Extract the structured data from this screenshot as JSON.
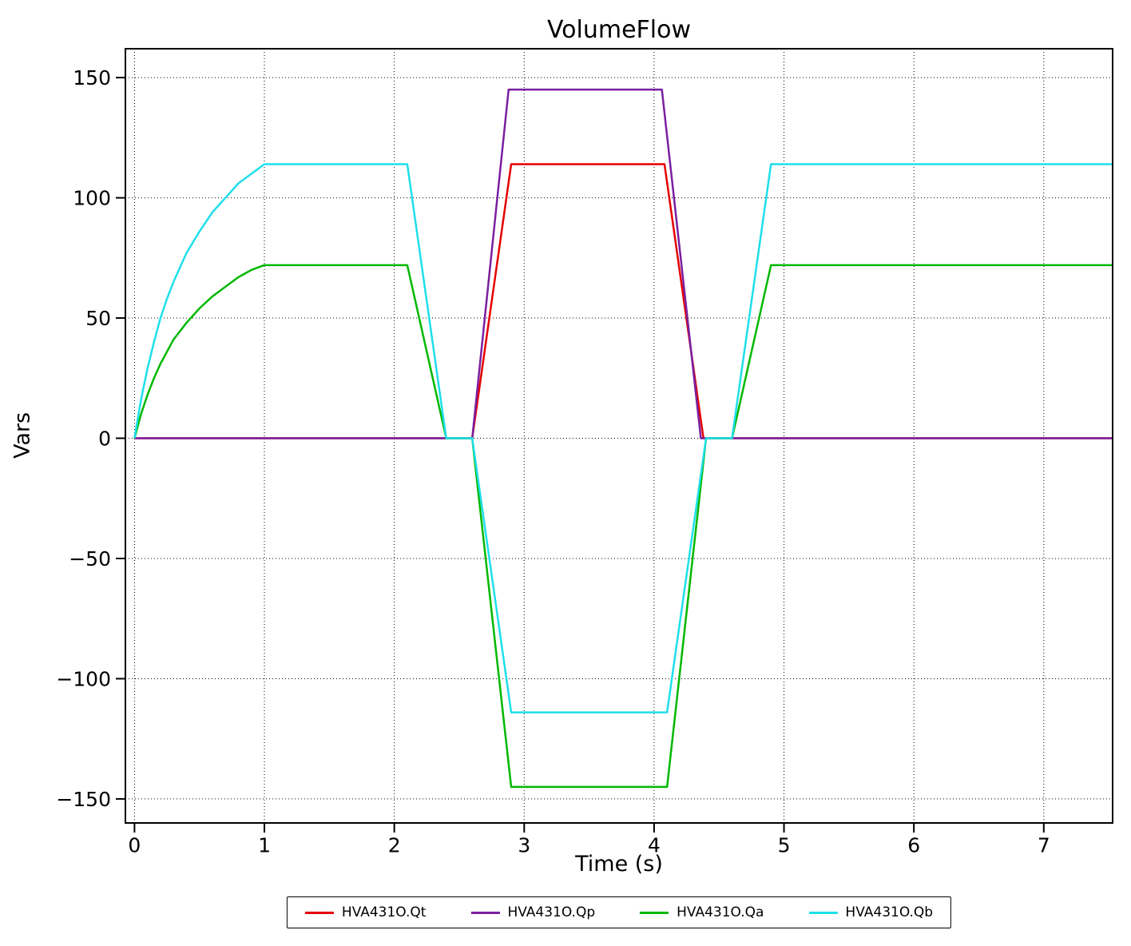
{
  "chart": {
    "title": "VolumeFlow",
    "xlabel": "Time (s)",
    "ylabel": "Vars"
  },
  "chart_data": {
    "type": "line",
    "title": "VolumeFlow",
    "xlabel": "Time (s)",
    "ylabel": "Vars",
    "grid": true,
    "grid_style": "dotted",
    "legend_position": "bottom",
    "xlim": [
      -0.07,
      7.53
    ],
    "ylim": [
      -160,
      162
    ],
    "x_ticks": [
      0,
      1,
      2,
      3,
      4,
      5,
      6,
      7
    ],
    "x_tick_labels": [
      "0",
      "1",
      "2",
      "3",
      "4",
      "5",
      "6",
      "7"
    ],
    "y_ticks": [
      -150,
      -100,
      -50,
      0,
      50,
      100,
      150
    ],
    "y_tick_labels": [
      "−150",
      "−100",
      "−50",
      "0",
      "50",
      "100",
      "150"
    ],
    "series": [
      {
        "name": "HVA431O.Qt",
        "color": "#e60000",
        "points": [
          [
            0,
            0
          ],
          [
            2.6,
            0
          ],
          [
            2.9,
            114
          ],
          [
            4.08,
            114
          ],
          [
            4.38,
            0
          ],
          [
            7.53,
            0
          ]
        ]
      },
      {
        "name": "HVA431O.Qp",
        "color": "#7a1fa0",
        "points": [
          [
            0,
            0
          ],
          [
            2.6,
            0
          ],
          [
            2.88,
            145
          ],
          [
            4.06,
            145
          ],
          [
            4.36,
            0
          ],
          [
            7.53,
            0
          ]
        ]
      },
      {
        "name": "HVA431O.Qa",
        "color": "#00b800",
        "points": [
          [
            0,
            0
          ],
          [
            0.05,
            10
          ],
          [
            0.1,
            18
          ],
          [
            0.15,
            25
          ],
          [
            0.2,
            31
          ],
          [
            0.25,
            36
          ],
          [
            0.3,
            41
          ],
          [
            0.4,
            48
          ],
          [
            0.5,
            54
          ],
          [
            0.6,
            59
          ],
          [
            0.7,
            63
          ],
          [
            0.8,
            67
          ],
          [
            0.9,
            70
          ],
          [
            1.0,
            72
          ],
          [
            2.1,
            72
          ],
          [
            2.4,
            0
          ],
          [
            2.6,
            0
          ],
          [
            2.9,
            -145
          ],
          [
            4.1,
            -145
          ],
          [
            4.4,
            0
          ],
          [
            4.6,
            0
          ],
          [
            4.9,
            72
          ],
          [
            7.53,
            72
          ]
        ]
      },
      {
        "name": "HVA431O.Qb",
        "color": "#1edfea",
        "points": [
          [
            0,
            0
          ],
          [
            0.05,
            16
          ],
          [
            0.1,
            29
          ],
          [
            0.15,
            40
          ],
          [
            0.2,
            50
          ],
          [
            0.25,
            58
          ],
          [
            0.3,
            65
          ],
          [
            0.4,
            77
          ],
          [
            0.5,
            86
          ],
          [
            0.6,
            94
          ],
          [
            0.7,
            100
          ],
          [
            0.8,
            106
          ],
          [
            0.9,
            110
          ],
          [
            1.0,
            114
          ],
          [
            2.1,
            114
          ],
          [
            2.4,
            0
          ],
          [
            2.6,
            0
          ],
          [
            2.9,
            -114
          ],
          [
            4.1,
            -114
          ],
          [
            4.4,
            0
          ],
          [
            4.6,
            0
          ],
          [
            4.9,
            114
          ],
          [
            7.53,
            114
          ]
        ]
      }
    ]
  }
}
